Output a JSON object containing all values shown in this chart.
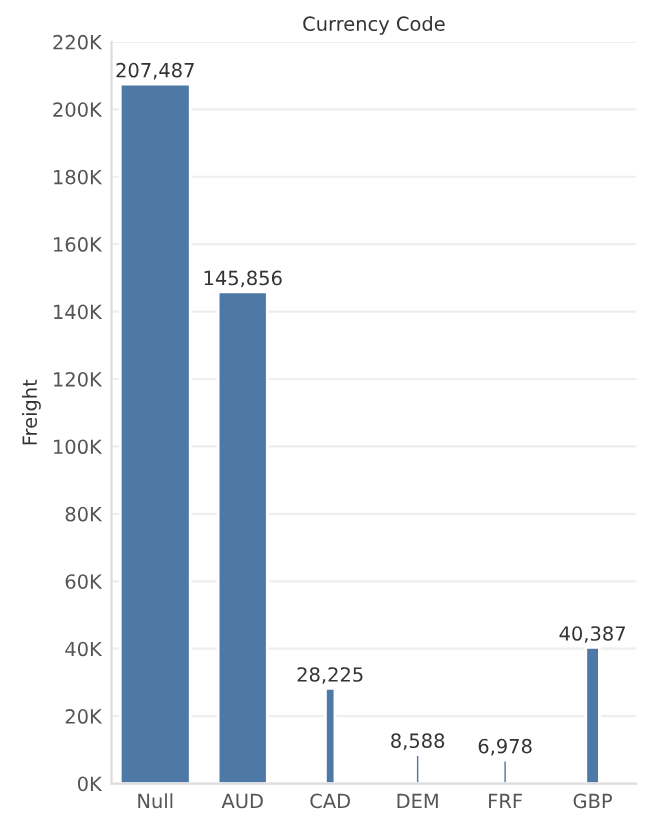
{
  "chart_data": {
    "type": "bar",
    "title": "Currency Code",
    "ylabel": "Freight",
    "categories": [
      "Null",
      "AUD",
      "CAD",
      "DEM",
      "FRF",
      "GBP"
    ],
    "values": [
      207487,
      145856,
      28225,
      8588,
      6978,
      40387
    ],
    "color": "#4e79a7",
    "value_labels": [
      "207,487",
      "145,856",
      "28,225",
      "8,588",
      "6,978",
      "40,387"
    ],
    "ylim": [
      0,
      220000
    ],
    "yticks": [
      {
        "value": 0,
        "label": "0K"
      },
      {
        "value": 20000,
        "label": "20K"
      },
      {
        "value": 40000,
        "label": "40K"
      },
      {
        "value": 60000,
        "label": "60K"
      },
      {
        "value": 80000,
        "label": "80K"
      },
      {
        "value": 100000,
        "label": "100K"
      },
      {
        "value": 120000,
        "label": "120K"
      },
      {
        "value": 140000,
        "label": "140K"
      },
      {
        "value": 160000,
        "label": "160K"
      },
      {
        "value": 180000,
        "label": "180K"
      },
      {
        "value": 200000,
        "label": "200K"
      },
      {
        "value": 220000,
        "label": "220K"
      }
    ],
    "grid": "y",
    "legend": false
  }
}
